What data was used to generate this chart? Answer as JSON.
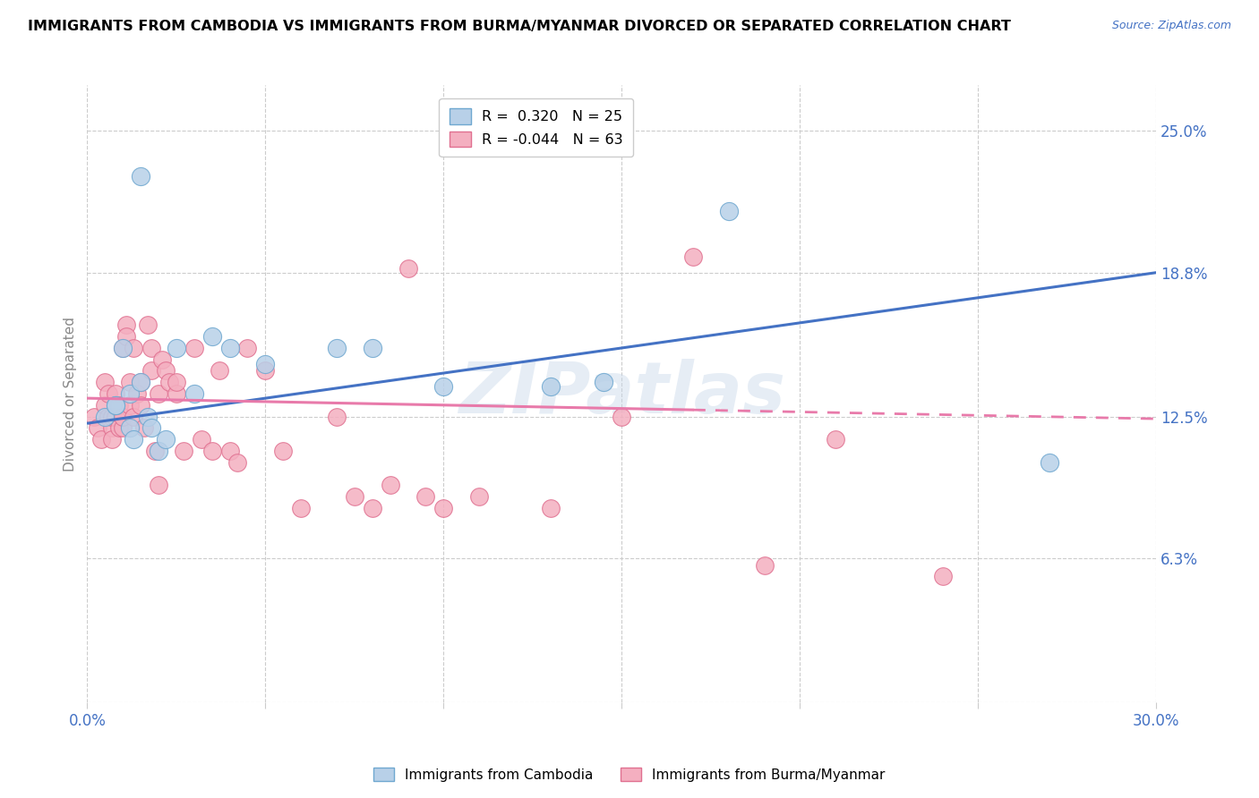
{
  "title": "IMMIGRANTS FROM CAMBODIA VS IMMIGRANTS FROM BURMA/MYANMAR DIVORCED OR SEPARATED CORRELATION CHART",
  "source": "Source: ZipAtlas.com",
  "ylabel": "Divorced or Separated",
  "ytick_labels": [
    "25.0%",
    "18.8%",
    "12.5%",
    "6.3%"
  ],
  "ytick_values": [
    0.25,
    0.188,
    0.125,
    0.063
  ],
  "xlim": [
    0.0,
    0.3
  ],
  "ylim": [
    0.0,
    0.27
  ],
  "cambodia_color": "#b8d0e8",
  "cambodia_edge": "#6fa8d0",
  "burma_color": "#f4afc0",
  "burma_edge": "#e07090",
  "trend_cambodia_color": "#4472c4",
  "trend_burma_color": "#e87aaa",
  "watermark": "ZIPatlas",
  "trend_cam_x0": 0.0,
  "trend_cam_y0": 0.122,
  "trend_cam_x1": 0.3,
  "trend_cam_y1": 0.188,
  "trend_bur_x0": 0.0,
  "trend_bur_y0": 0.133,
  "trend_bur_x1": 0.3,
  "trend_bur_y1": 0.124,
  "cambodia_x": [
    0.015,
    0.005,
    0.008,
    0.008,
    0.01,
    0.012,
    0.012,
    0.013,
    0.015,
    0.017,
    0.018,
    0.02,
    0.022,
    0.025,
    0.03,
    0.035,
    0.04,
    0.05,
    0.07,
    0.1,
    0.13,
    0.145,
    0.18,
    0.27,
    0.08
  ],
  "cambodia_y": [
    0.23,
    0.125,
    0.13,
    0.13,
    0.155,
    0.12,
    0.135,
    0.115,
    0.14,
    0.125,
    0.12,
    0.11,
    0.115,
    0.155,
    0.135,
    0.16,
    0.155,
    0.148,
    0.155,
    0.138,
    0.138,
    0.14,
    0.215,
    0.105,
    0.155
  ],
  "burma_x": [
    0.002,
    0.003,
    0.004,
    0.005,
    0.005,
    0.006,
    0.006,
    0.007,
    0.007,
    0.007,
    0.008,
    0.008,
    0.009,
    0.009,
    0.01,
    0.01,
    0.01,
    0.011,
    0.011,
    0.012,
    0.012,
    0.013,
    0.013,
    0.014,
    0.015,
    0.015,
    0.016,
    0.017,
    0.018,
    0.018,
    0.019,
    0.02,
    0.02,
    0.021,
    0.022,
    0.023,
    0.025,
    0.025,
    0.027,
    0.03,
    0.032,
    0.035,
    0.037,
    0.04,
    0.042,
    0.045,
    0.05,
    0.055,
    0.06,
    0.07,
    0.075,
    0.08,
    0.085,
    0.09,
    0.095,
    0.1,
    0.11,
    0.13,
    0.15,
    0.17,
    0.19,
    0.21,
    0.24
  ],
  "burma_y": [
    0.125,
    0.12,
    0.115,
    0.14,
    0.13,
    0.125,
    0.135,
    0.12,
    0.125,
    0.115,
    0.125,
    0.135,
    0.12,
    0.13,
    0.12,
    0.125,
    0.155,
    0.165,
    0.16,
    0.13,
    0.14,
    0.125,
    0.155,
    0.135,
    0.14,
    0.13,
    0.12,
    0.165,
    0.155,
    0.145,
    0.11,
    0.095,
    0.135,
    0.15,
    0.145,
    0.14,
    0.135,
    0.14,
    0.11,
    0.155,
    0.115,
    0.11,
    0.145,
    0.11,
    0.105,
    0.155,
    0.145,
    0.11,
    0.085,
    0.125,
    0.09,
    0.085,
    0.095,
    0.19,
    0.09,
    0.085,
    0.09,
    0.085,
    0.125,
    0.195,
    0.06,
    0.115,
    0.055
  ]
}
